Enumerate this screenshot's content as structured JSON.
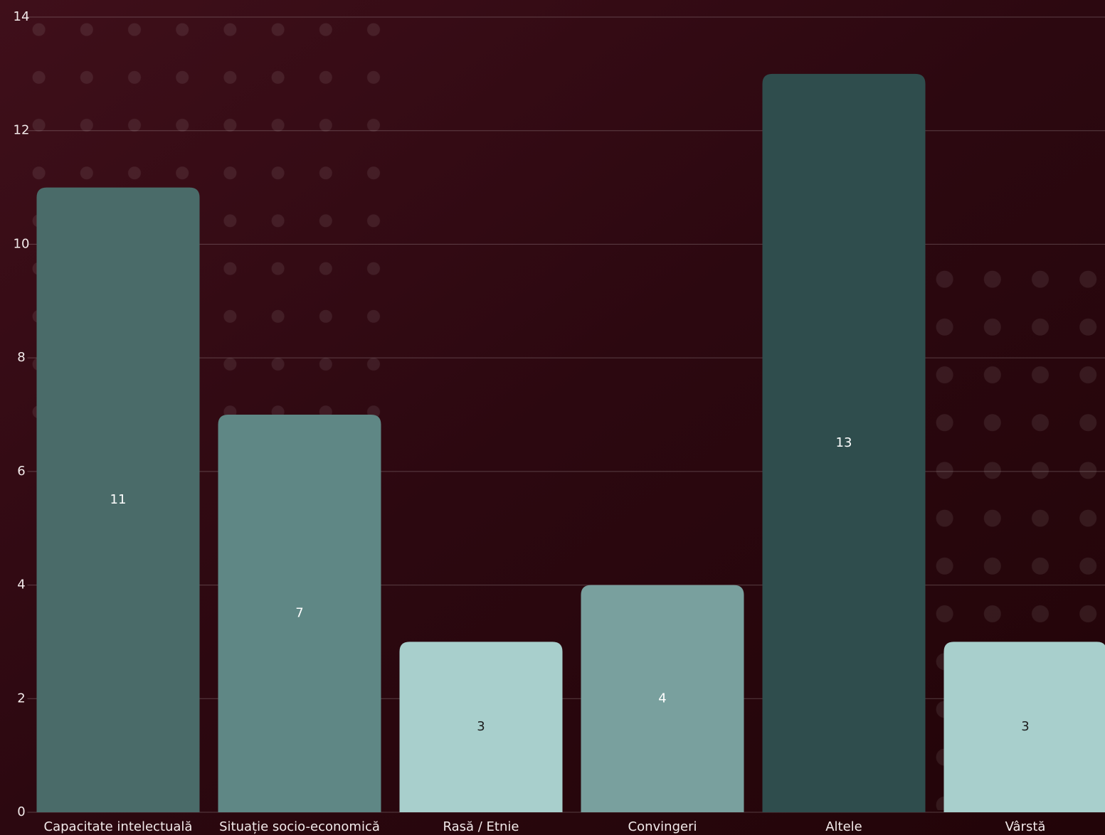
{
  "chart_data": {
    "type": "bar",
    "categories": [
      "Capacitate intelectuală",
      "Situație socio-economică",
      "Rasă / Etnie",
      "Convingeri",
      "Altele",
      "Vârstă"
    ],
    "values": [
      11,
      7,
      3,
      4,
      13,
      3
    ],
    "colors": [
      "#4a6b69",
      "#5f8785",
      "#a8cfcc",
      "#79a09e",
      "#2f4d4d",
      "#a8cfcc"
    ],
    "ylim": [
      0,
      14
    ],
    "yticks": [
      0,
      2,
      4,
      6,
      8,
      10,
      12,
      14
    ],
    "grid": true
  }
}
